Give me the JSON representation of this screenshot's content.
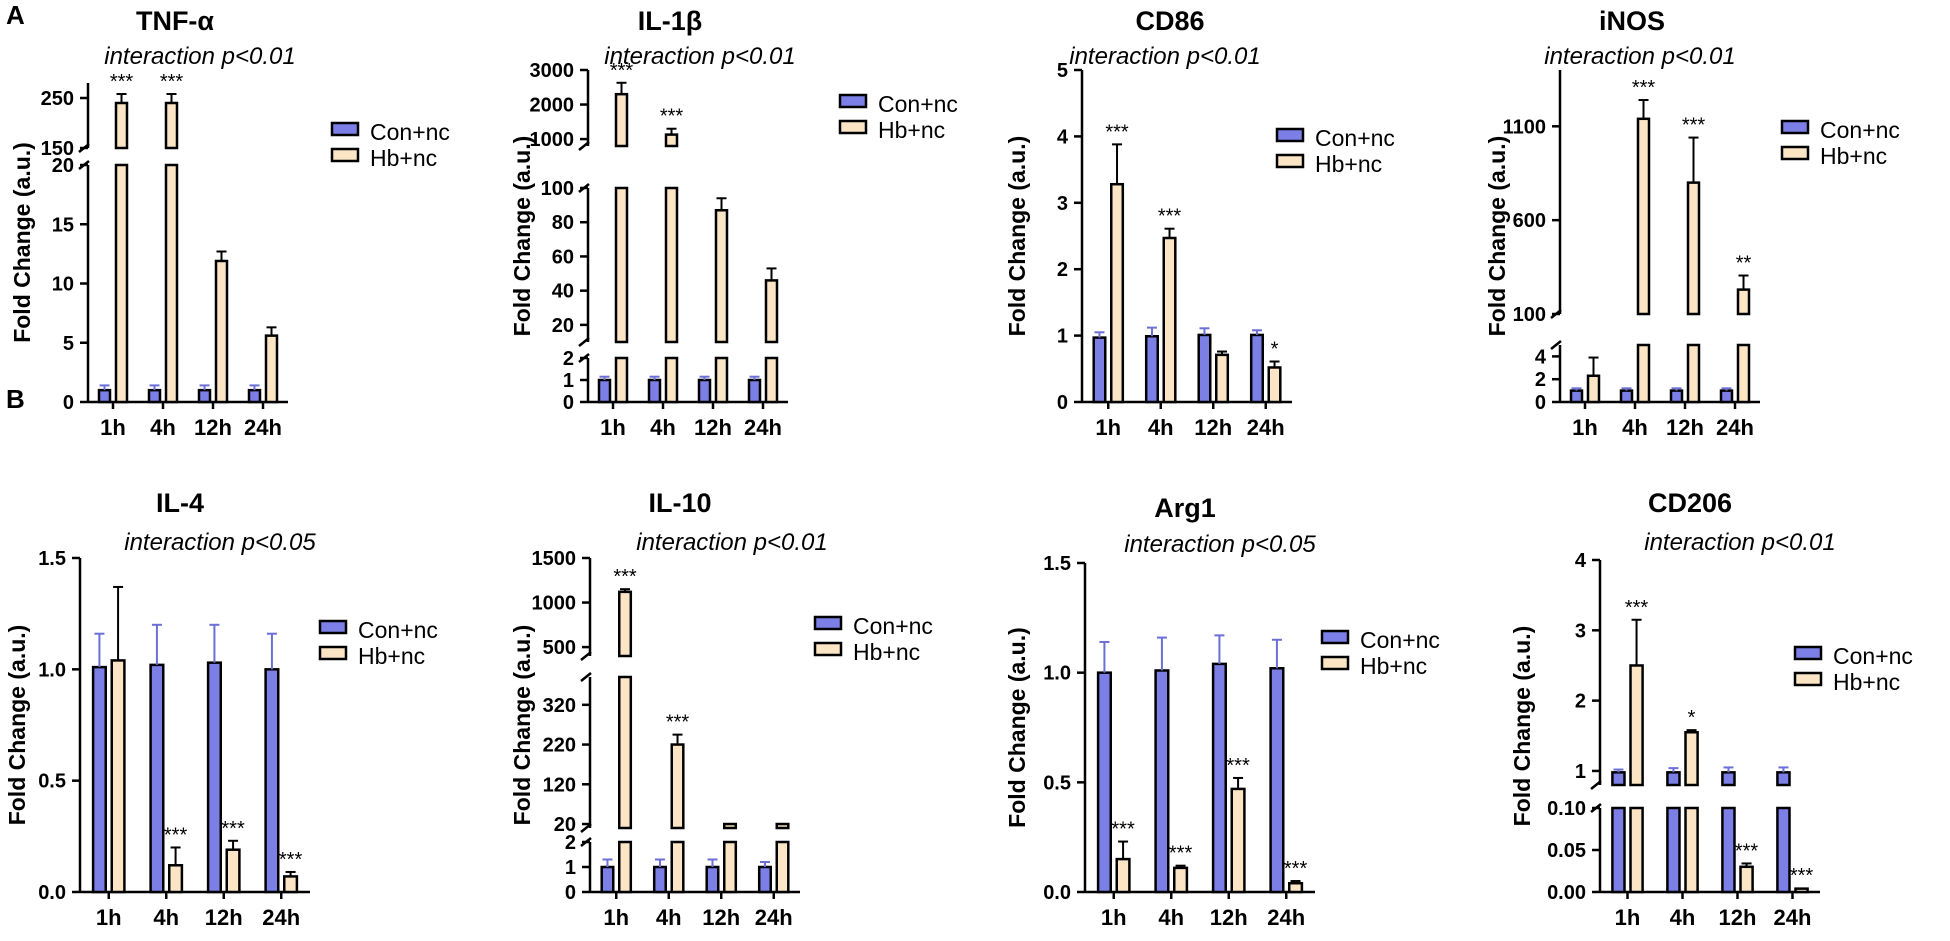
{
  "panel_letters": [
    "A",
    "B"
  ],
  "chart_data": [
    {
      "type": "bar",
      "panel": "A",
      "title": "TNF-α",
      "subtitle": "interaction p<0.01",
      "xlabel": "",
      "ylabel": "Fold Change (a.u.)",
      "categories": [
        "1h",
        "4h",
        "12h",
        "24h"
      ],
      "segments": [
        {
          "range": [
            0,
            20
          ],
          "ticks": [
            0,
            5,
            10,
            15,
            20
          ]
        },
        {
          "range": [
            150,
            280
          ],
          "ticks": [
            150,
            250
          ]
        }
      ],
      "series": [
        {
          "name": "Con+nc",
          "color": "#7b7fe6",
          "values": [
            1,
            1,
            1,
            1
          ],
          "errors": [
            0.4,
            0.4,
            0.4,
            0.4
          ]
        },
        {
          "name": "Hb+nc",
          "color": "#fbe5c4",
          "values": [
            240,
            240,
            11.9,
            5.6
          ],
          "errors": [
            18,
            18,
            0.8,
            0.7
          ]
        }
      ],
      "significance": [
        "***",
        "***",
        "",
        ""
      ],
      "legend": "top-right"
    },
    {
      "type": "bar",
      "panel": "A",
      "title": "IL-1β",
      "subtitle": "interaction p<0.01",
      "xlabel": "",
      "ylabel": "Fold Change (a.u.)",
      "categories": [
        "1h",
        "4h",
        "12h",
        "24h"
      ],
      "segments": [
        {
          "range": [
            0,
            2
          ],
          "ticks": [
            0,
            1,
            2
          ]
        },
        {
          "range": [
            10,
            100
          ],
          "ticks": [
            20,
            40,
            60,
            80,
            100
          ]
        },
        {
          "range": [
            800,
            3000
          ],
          "ticks": [
            1000,
            2000,
            3000
          ]
        }
      ],
      "series": [
        {
          "name": "Con+nc",
          "color": "#7b7fe6",
          "values": [
            1,
            1,
            1,
            1
          ],
          "errors": [
            0.15,
            0.15,
            0.15,
            0.15
          ]
        },
        {
          "name": "Hb+nc",
          "color": "#fbe5c4",
          "values": [
            2300,
            1130,
            87,
            46
          ],
          "errors": [
            330,
            170,
            7,
            7
          ]
        }
      ],
      "significance": [
        "***",
        "***",
        "",
        ""
      ],
      "legend": "top-right"
    },
    {
      "type": "bar",
      "panel": "A",
      "title": "CD86",
      "subtitle": "interaction p<0.01",
      "xlabel": "",
      "ylabel": "Fold Change (a.u.)",
      "categories": [
        "1h",
        "4h",
        "12h",
        "24h"
      ],
      "segments": [
        {
          "range": [
            0,
            5
          ],
          "ticks": [
            0,
            1,
            2,
            3,
            4,
            5
          ]
        }
      ],
      "series": [
        {
          "name": "Con+nc",
          "color": "#7b7fe6",
          "values": [
            0.97,
            0.99,
            1.01,
            1.01
          ],
          "errors": [
            0.08,
            0.13,
            0.1,
            0.07
          ]
        },
        {
          "name": "Hb+nc",
          "color": "#fbe5c4",
          "values": [
            3.28,
            2.47,
            0.71,
            0.52
          ],
          "errors": [
            0.6,
            0.14,
            0.05,
            0.09
          ]
        }
      ],
      "significance": [
        "***",
        "***",
        "",
        "*"
      ],
      "legend": "top-right"
    },
    {
      "type": "bar",
      "panel": "A",
      "title": "iNOS",
      "subtitle": "interaction p<0.01",
      "xlabel": "",
      "ylabel": "Fold Change (a.u.)",
      "categories": [
        "1h",
        "4h",
        "12h",
        "24h"
      ],
      "segments": [
        {
          "range": [
            0,
            5
          ],
          "ticks": [
            0,
            2,
            4
          ]
        },
        {
          "range": [
            100,
            1400
          ],
          "ticks": [
            100,
            600,
            1100
          ]
        }
      ],
      "series": [
        {
          "name": "Con+nc",
          "color": "#7b7fe6",
          "values": [
            1,
            1,
            1,
            1
          ],
          "errors": [
            0.2,
            0.2,
            0.2,
            0.2
          ]
        },
        {
          "name": "Hb+nc",
          "color": "#fbe5c4",
          "values": [
            2.3,
            1140,
            800,
            230
          ],
          "errors": [
            1.6,
            100,
            240,
            75
          ]
        }
      ],
      "significance": [
        "",
        "***",
        "***",
        "**"
      ],
      "legend": "top-right"
    },
    {
      "type": "bar",
      "panel": "B",
      "title": "IL-4",
      "subtitle": "interaction p<0.05",
      "xlabel": "",
      "ylabel": "Fold Change (a.u.)",
      "categories": [
        "1h",
        "4h",
        "12h",
        "24h"
      ],
      "segments": [
        {
          "range": [
            0,
            1.5
          ],
          "ticks": [
            0.0,
            0.5,
            1.0,
            1.5
          ],
          "decimals": 1
        }
      ],
      "series": [
        {
          "name": "Con+nc",
          "color": "#7b7fe6",
          "values": [
            1.01,
            1.02,
            1.03,
            1.0
          ],
          "errors": [
            0.15,
            0.18,
            0.17,
            0.16
          ]
        },
        {
          "name": "Hb+nc",
          "color": "#fbe5c4",
          "values": [
            1.04,
            0.12,
            0.19,
            0.07
          ],
          "errors": [
            0.33,
            0.08,
            0.04,
            0.02
          ]
        }
      ],
      "significance": [
        "",
        "***",
        "***",
        "***"
      ],
      "legend": "top-right"
    },
    {
      "type": "bar",
      "panel": "B",
      "title": "IL-10",
      "subtitle": "interaction p<0.01",
      "xlabel": "",
      "ylabel": "Fold Change (a.u.)",
      "categories": [
        "1h",
        "4h",
        "12h",
        "24h"
      ],
      "segments": [
        {
          "range": [
            0,
            2
          ],
          "ticks": [
            0,
            1,
            2
          ]
        },
        {
          "range": [
            10,
            390
          ],
          "ticks": [
            20,
            120,
            220,
            320
          ]
        },
        {
          "range": [
            400,
            1500
          ],
          "ticks": [
            500,
            1000,
            1500
          ]
        }
      ],
      "series": [
        {
          "name": "Con+nc",
          "color": "#7b7fe6",
          "values": [
            1,
            1,
            1,
            1
          ],
          "errors": [
            0.3,
            0.3,
            0.3,
            0.2
          ]
        },
        {
          "name": "Hb+nc",
          "color": "#fbe5c4",
          "values": [
            1120,
            220,
            20,
            20
          ],
          "errors": [
            30,
            25,
            2,
            2
          ]
        }
      ],
      "significance": [
        "***",
        "***",
        "",
        ""
      ],
      "legend": "top-right"
    },
    {
      "type": "bar",
      "panel": "B",
      "title": "Arg1",
      "subtitle": "interaction p<0.05",
      "xlabel": "",
      "ylabel": "Fold Change (a.u.)",
      "categories": [
        "1h",
        "4h",
        "12h",
        "24h"
      ],
      "segments": [
        {
          "range": [
            0,
            1.5
          ],
          "ticks": [
            0.0,
            0.5,
            1.0,
            1.5
          ],
          "decimals": 1
        }
      ],
      "series": [
        {
          "name": "Con+nc",
          "color": "#7b7fe6",
          "values": [
            1.0,
            1.01,
            1.04,
            1.02
          ],
          "errors": [
            0.14,
            0.15,
            0.13,
            0.13
          ]
        },
        {
          "name": "Hb+nc",
          "color": "#fbe5c4",
          "values": [
            0.15,
            0.11,
            0.47,
            0.04
          ],
          "errors": [
            0.08,
            0.01,
            0.05,
            0.01
          ]
        }
      ],
      "significance": [
        "***",
        "***",
        "***",
        "***"
      ],
      "legend": "top-right"
    },
    {
      "type": "bar",
      "panel": "B",
      "title": "CD206",
      "subtitle": "interaction p<0.01",
      "xlabel": "",
      "ylabel": "Fold Change (a.u.)",
      "categories": [
        "1h",
        "4h",
        "12h",
        "24h"
      ],
      "segments": [
        {
          "range": [
            0,
            0.1
          ],
          "ticks": [
            0.0,
            0.05,
            0.1
          ],
          "labels": [
            "0.00",
            "0.05",
            "0.10"
          ]
        },
        {
          "range": [
            0.8,
            4
          ],
          "ticks": [
            1,
            2,
            3,
            4
          ]
        }
      ],
      "series": [
        {
          "name": "Con+nc",
          "color": "#7b7fe6",
          "values": [
            0.98,
            0.98,
            0.98,
            0.98
          ],
          "errors": [
            0.04,
            0.06,
            0.07,
            0.07
          ]
        },
        {
          "name": "Hb+nc",
          "color": "#fbe5c4",
          "values": [
            2.5,
            1.55,
            0.03,
            0.004
          ],
          "errors": [
            0.65,
            0.03,
            0.004,
            0.001
          ]
        }
      ],
      "significance": [
        "***",
        "*",
        "***",
        "***"
      ],
      "legend": "top-right"
    }
  ]
}
